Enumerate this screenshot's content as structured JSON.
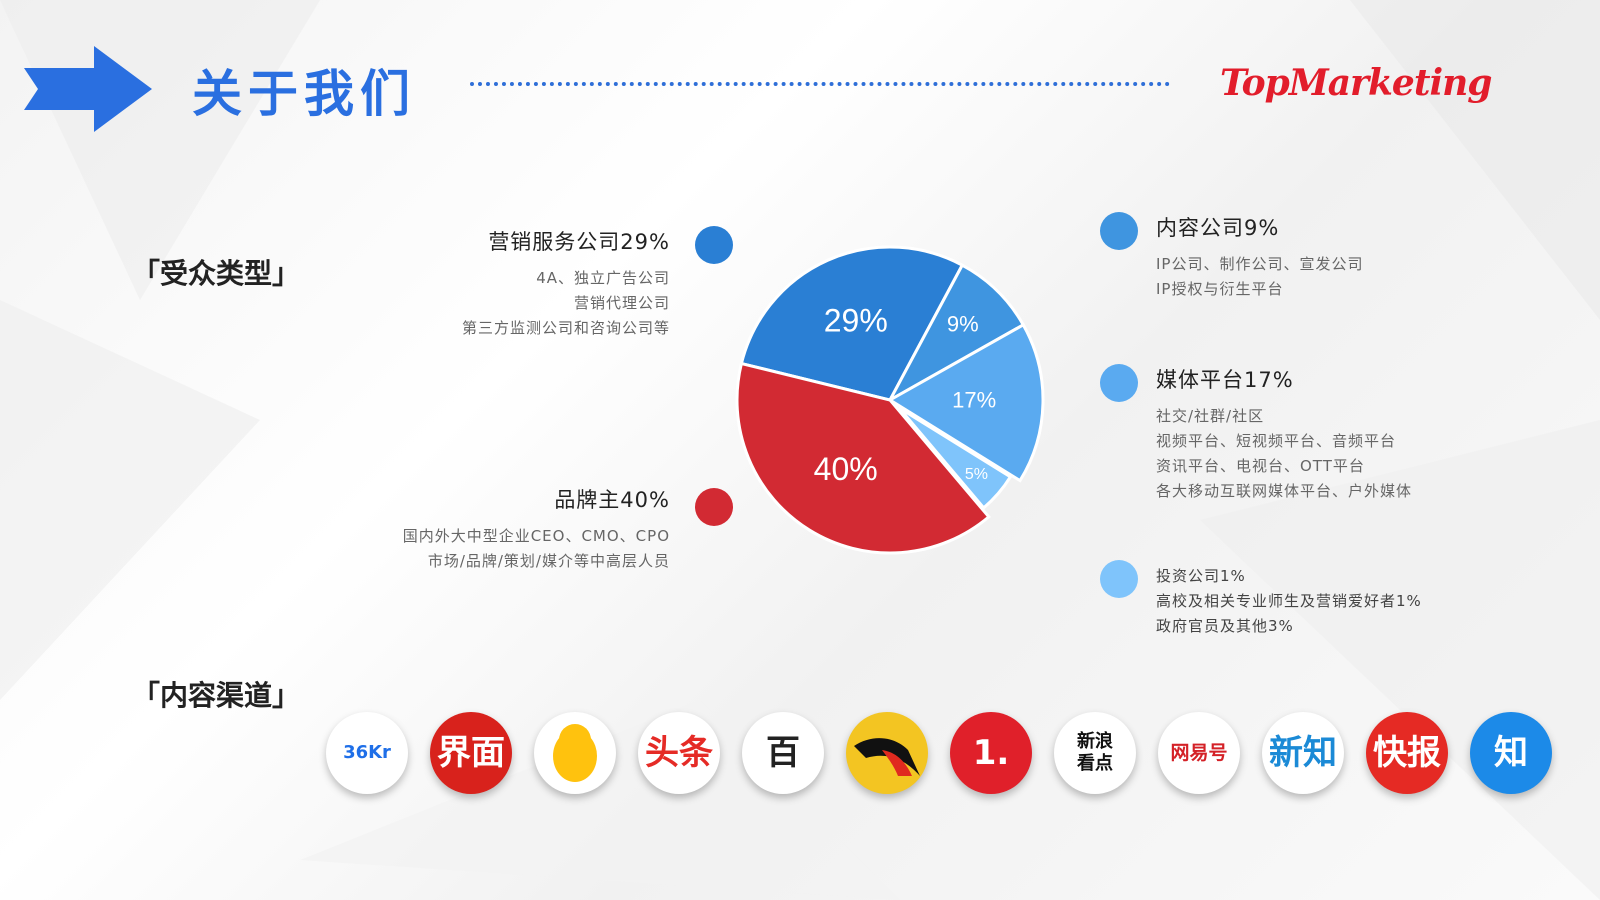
{
  "header": {
    "title": "关于我们",
    "logo_text": "TopMarketing",
    "accent": "#2a6fe0",
    "logo_color": "#e21d2b"
  },
  "sections": {
    "audience_label": "「受众类型」",
    "channels_label": "「内容渠道」"
  },
  "legend": {
    "marketing": {
      "title": "营销服务公司29%",
      "lines": [
        "4A、独立广告公司",
        "营销代理公司",
        "第三方监测公司和咨询公司等"
      ]
    },
    "brand": {
      "title": "品牌主40%",
      "lines": [
        "国内外大中型企业CEO、CMO、CPO",
        "市场/品牌/策划/媒介等中高层人员"
      ]
    },
    "content": {
      "title": "内容公司9%",
      "lines": [
        "IP公司、制作公司、宣发公司",
        "IP授权与衍生平台"
      ]
    },
    "media": {
      "title": "媒体平台17%",
      "lines": [
        "社交/社群/社区",
        "视频平台、短视频平台、音频平台",
        "资讯平台、电视台、OTT平台",
        "各大移动互联网媒体平台、户外媒体"
      ]
    },
    "other": {
      "lines": [
        "投资公司1%",
        "高校及相关专业师生及营销爱好者1%",
        "政府官员及其他3%"
      ]
    }
  },
  "chart_data": {
    "type": "pie",
    "slices": [
      {
        "label": "29%",
        "value": 29,
        "color": "#2a7fd4",
        "explode": 0
      },
      {
        "label": "9%",
        "value": 9,
        "color": "#3f95e0",
        "explode": 0
      },
      {
        "label": "17%",
        "value": 17,
        "color": "#5aaaf0",
        "explode": 0
      },
      {
        "label": "5%",
        "value": 5,
        "color": "#7fc4fb",
        "explode": 1
      },
      {
        "label": "40%",
        "value": 40,
        "color": "#d22a33",
        "explode": 0
      }
    ]
  },
  "channels": [
    {
      "icon": "36kr-icon",
      "text": "36Kr",
      "bg": "#ffffff",
      "fg": "#1f6fe8"
    },
    {
      "icon": "jiemian-icon",
      "text": "界面",
      "bg": "#d8221c",
      "fg": "#ffffff"
    },
    {
      "icon": "qq-penguin-icon",
      "text": "",
      "bg": "#ffffff",
      "fg": "#ffc20e"
    },
    {
      "icon": "toutiao-icon",
      "text": "头条",
      "bg": "#ffffff",
      "fg": "#e52b26"
    },
    {
      "icon": "baijiahao-icon",
      "text": "百",
      "bg": "#ffffff",
      "fg": "#222222"
    },
    {
      "icon": "sohu-icon",
      "text": "",
      "bg": "#f3c522",
      "fg": "#111111"
    },
    {
      "icon": "yidian-icon",
      "text": "1.",
      "bg": "#e0202a",
      "fg": "#ffffff"
    },
    {
      "icon": "sina-kandian-icon",
      "text": "新浪看点",
      "bg": "#ffffff",
      "fg": "#111111"
    },
    {
      "icon": "wangyihao-icon",
      "text": "网易号",
      "bg": "#ffffff",
      "fg": "#d42127"
    },
    {
      "icon": "xinzhi-icon",
      "text": "新知",
      "bg": "#ffffff",
      "fg": "#1b8ad6"
    },
    {
      "icon": "kuaibao-icon",
      "text": "快报",
      "bg": "#e52a24",
      "fg": "#ffffff"
    },
    {
      "icon": "zhihu-icon",
      "text": "知",
      "bg": "#1c8ae8",
      "fg": "#ffffff"
    }
  ]
}
